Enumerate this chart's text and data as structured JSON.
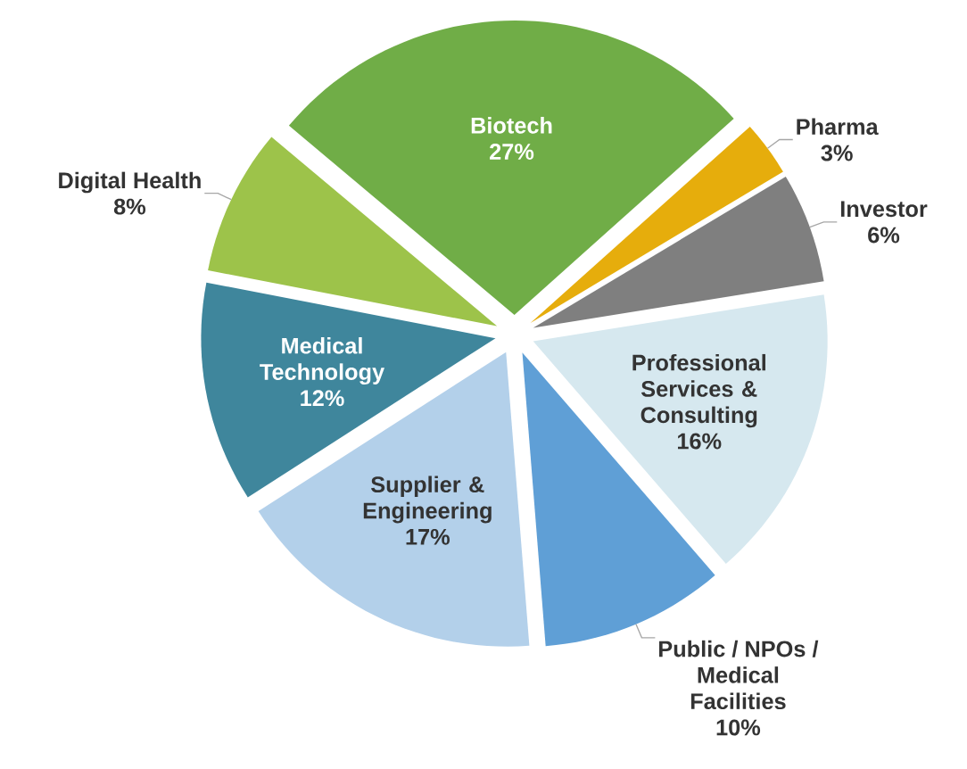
{
  "chart_data": {
    "type": "pie",
    "categories": [
      "Biotech",
      "Pharma",
      "Investor",
      "Professional Services & Consulting",
      "Public / NPOs / Medical Facilities",
      "Supplier & Engineering",
      "Medical Technology",
      "Digital Health"
    ],
    "values": [
      27,
      3,
      6,
      16,
      10,
      17,
      12,
      8
    ],
    "value_labels": [
      "27%",
      "3%",
      "6%",
      "16%",
      "10%",
      "17%",
      "12%",
      "8%"
    ],
    "colors": [
      "#70ad47",
      "#e6ad0c",
      "#7f7f7f",
      "#d6e8ef",
      "#5f9fd6",
      "#b3d0ea",
      "#3f869c",
      "#9dc34a"
    ]
  }
}
